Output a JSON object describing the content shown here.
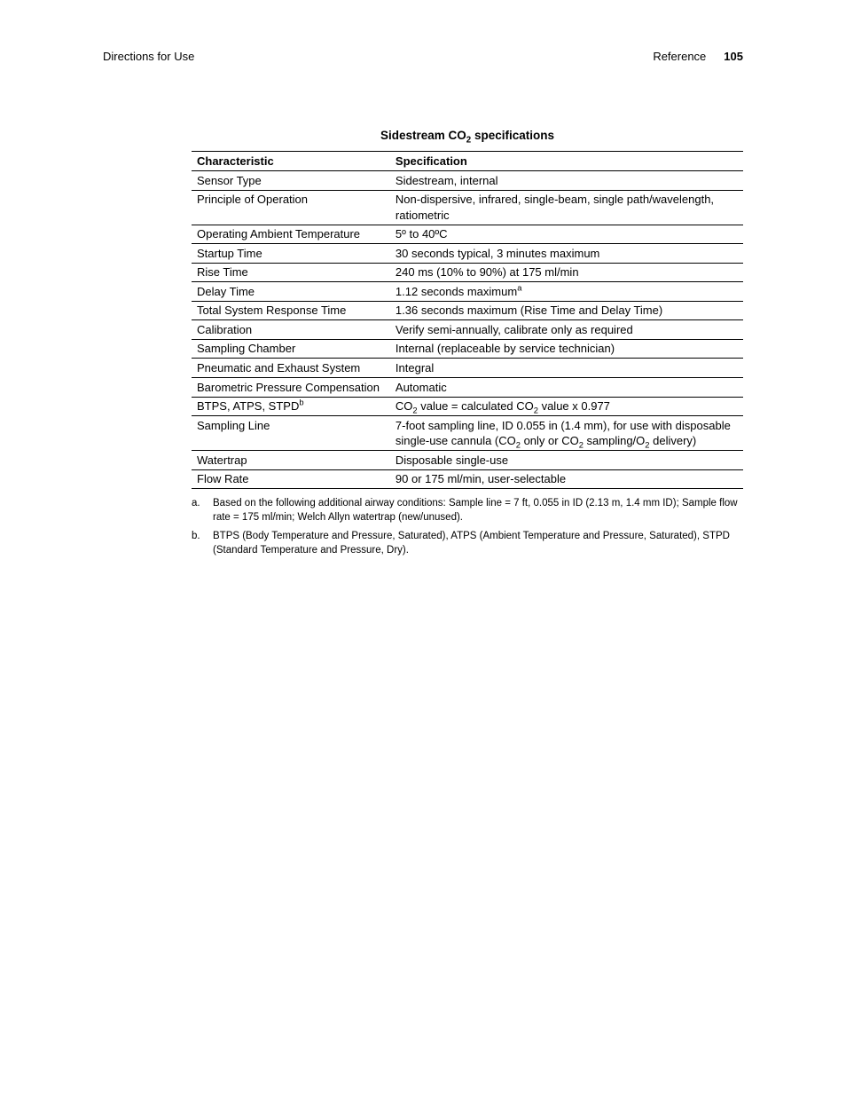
{
  "header": {
    "left": "Directions for Use",
    "right_label": "Reference",
    "page_number": "105"
  },
  "table": {
    "title_pre": "Sidestream CO",
    "title_sub": "2",
    "title_post": " specifications",
    "header_col1": "Characteristic",
    "header_col2": "Specification",
    "rows": [
      {
        "c1": "Sensor Type",
        "c2": "Sidestream, internal"
      },
      {
        "c1": "Principle of Operation",
        "c2": "Non-dispersive, infrared, single-beam, single path/wavelength, ratiometric"
      },
      {
        "c1": "Operating Ambient Temperature",
        "c2": "5º to 40ºC"
      },
      {
        "c1": "Startup Time",
        "c2": "30 seconds typical, 3 minutes maximum"
      },
      {
        "c1": "Rise Time",
        "c2": "240 ms (10% to 90%) at 175 ml/min"
      },
      {
        "c1": "Delay Time",
        "c2_pre": "1.12 seconds maximum",
        "c2_sup": "a"
      },
      {
        "c1": "Total System Response Time",
        "c2": "1.36 seconds maximum (Rise Time and Delay Time)"
      },
      {
        "c1": "Calibration",
        "c2": "Verify semi-annually, calibrate only as required"
      },
      {
        "c1": "Sampling Chamber",
        "c2": "Internal (replaceable by service technician)"
      },
      {
        "c1": "Pneumatic and Exhaust System",
        "c2": "Integral"
      },
      {
        "c1": "Barometric Pressure Compensation",
        "c2": "Automatic"
      },
      {
        "c1_pre": "BTPS, ATPS, STPD",
        "c1_sup": "b",
        "c2_parts": [
          "CO",
          {
            "sub": "2"
          },
          " value = calculated CO",
          {
            "sub": "2"
          },
          " value x 0.977"
        ]
      },
      {
        "c1": "Sampling Line",
        "c2_parts": [
          "7-foot sampling line, ID 0.055 in (1.4 mm), for use with disposable single-use cannula (CO",
          {
            "sub": "2"
          },
          " only or CO",
          {
            "sub": "2"
          },
          " sampling/O",
          {
            "sub": "2"
          },
          " delivery)"
        ]
      },
      {
        "c1": "Watertrap",
        "c2": "Disposable single-use"
      },
      {
        "c1": "Flow Rate",
        "c2": "90 or 175 ml/min, user-selectable"
      }
    ]
  },
  "footnotes": [
    {
      "marker": "a.",
      "text": "Based on the following additional airway conditions: Sample line = 7 ft, 0.055 in ID (2.13 m, 1.4 mm ID); Sample flow rate = 175 ml/min; Welch Allyn watertrap (new/unused)."
    },
    {
      "marker": "b.",
      "text": "BTPS (Body Temperature and Pressure, Saturated), ATPS (Ambient Temperature and Pressure, Saturated), STPD (Standard Temperature and Pressure, Dry)."
    }
  ]
}
